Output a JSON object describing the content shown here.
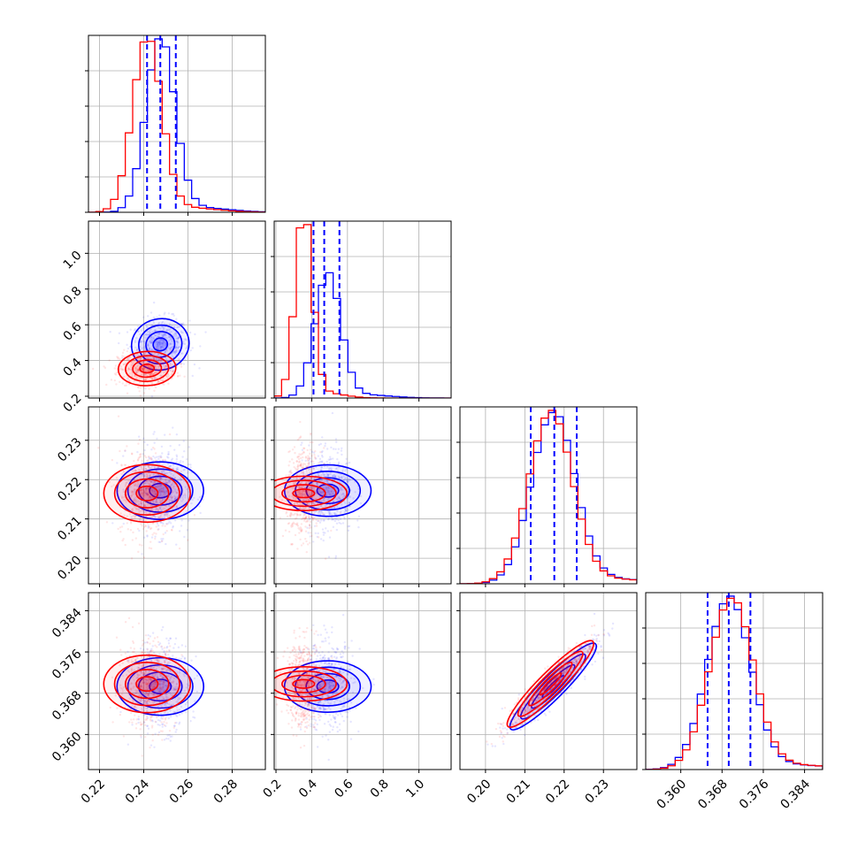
{
  "chart_data": {
    "type": "corner",
    "title": "",
    "grid": true,
    "parameters": [
      {
        "index": 0,
        "range": [
          0.215,
          0.295
        ],
        "ticks": [
          0.22,
          0.24,
          0.26,
          0.28
        ],
        "tick_labels": [
          "0.22",
          "0.24",
          "0.26",
          "0.28"
        ]
      },
      {
        "index": 1,
        "range": [
          0.19,
          1.18
        ],
        "ticks": [
          0.2,
          0.4,
          0.6,
          0.8,
          1.0
        ],
        "tick_labels": [
          "0.2",
          "0.4",
          "0.6",
          "0.8",
          "1.0"
        ]
      },
      {
        "index": 2,
        "range": [
          0.1935,
          0.2385
        ],
        "ticks": [
          0.2,
          0.21,
          0.22,
          0.23
        ],
        "tick_labels": [
          "0.20",
          "0.21",
          "0.22",
          "0.23"
        ]
      },
      {
        "index": 3,
        "range": [
          0.3532,
          0.3875
        ],
        "ticks": [
          0.36,
          0.368,
          0.376,
          0.384
        ],
        "tick_labels": [
          "0.360",
          "0.368",
          "0.376",
          "0.384"
        ]
      }
    ],
    "series": [
      {
        "color": "#0000ff",
        "means": [
          0.2475,
          0.49,
          0.2172,
          0.3693
        ],
        "sigmas": [
          0.0065,
          0.072,
          0.0055,
          0.0042
        ],
        "quantile_lines": [
          [
            0.2415,
            0.2475,
            0.2545
          ],
          [
            0.41,
            0.47,
            0.555
          ],
          [
            0.2115,
            0.2175,
            0.2232
          ],
          [
            0.3652,
            0.3693,
            0.3735
          ]
        ]
      },
      {
        "color": "#ff0000",
        "means": [
          0.2415,
          0.355,
          0.2165,
          0.3698
        ],
        "sigmas": [
          0.0065,
          0.048,
          0.0055,
          0.0042
        ]
      }
    ],
    "correlations": [
      {
        "pair": [
          2,
          3
        ],
        "rho": 0.93
      },
      {
        "pair": [
          0,
          1
        ],
        "rho": 0.05
      }
    ]
  }
}
